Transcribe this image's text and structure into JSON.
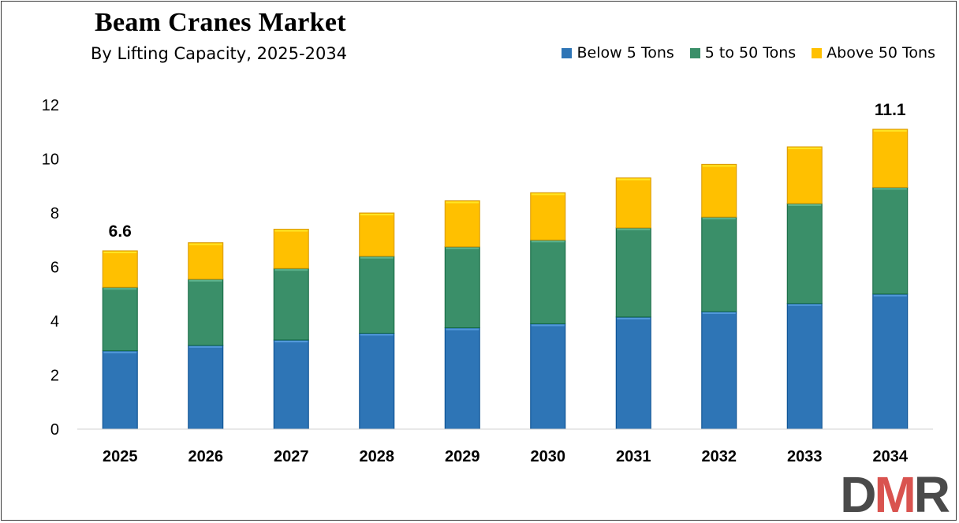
{
  "chart_data": {
    "type": "bar",
    "stacked": true,
    "title": "Beam Cranes Market",
    "subtitle": "By Lifting Capacity, 2025-2034",
    "categories": [
      "2025",
      "2026",
      "2027",
      "2028",
      "2029",
      "2030",
      "2031",
      "2032",
      "2033",
      "2034"
    ],
    "series": [
      {
        "name": "Below 5 Tons",
        "color": "#2e75b6",
        "values": [
          2.9,
          3.1,
          3.3,
          3.55,
          3.75,
          3.9,
          4.15,
          4.35,
          4.65,
          5.0
        ]
      },
      {
        "name": "5 to 50 Tons",
        "color": "#3a8f69",
        "values": [
          2.35,
          2.45,
          2.65,
          2.85,
          3.0,
          3.1,
          3.3,
          3.5,
          3.7,
          3.95
        ]
      },
      {
        "name": "Above 50 Tons",
        "color": "#ffc000",
        "values": [
          1.35,
          1.35,
          1.45,
          1.6,
          1.7,
          1.75,
          1.85,
          1.95,
          2.1,
          2.15
        ]
      }
    ],
    "ylim": [
      0,
      12
    ],
    "yticks": [
      0,
      2,
      4,
      6,
      8,
      10,
      12
    ],
    "annotations": [
      {
        "category": "2025",
        "label": "6.6"
      },
      {
        "category": "2034",
        "label": "11.1"
      }
    ],
    "legend_position": "top-right",
    "grid": false
  },
  "logo": {
    "d": "D",
    "m": "M",
    "r": "R"
  }
}
